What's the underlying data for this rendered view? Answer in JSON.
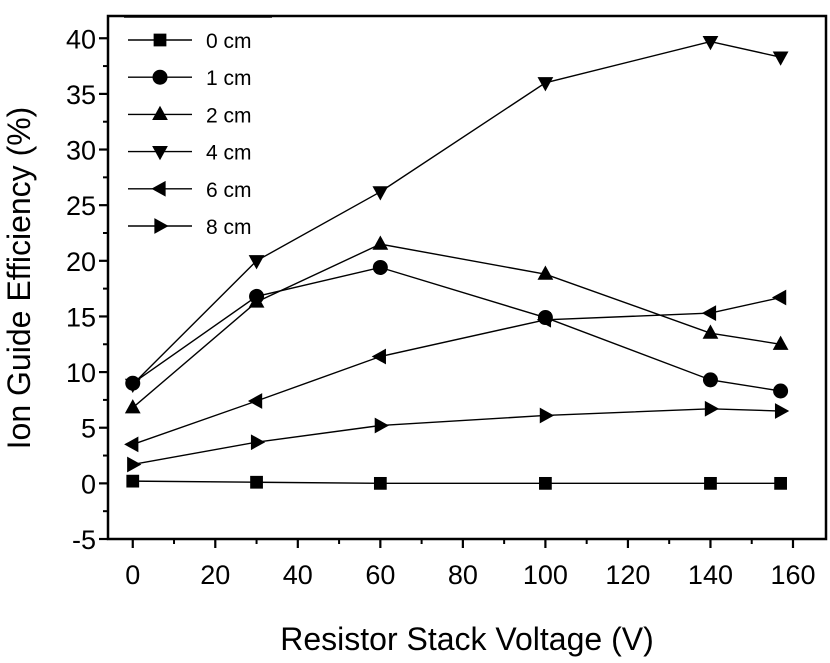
{
  "chart_data": {
    "type": "line",
    "title": "",
    "xlabel": "Resistor Stack Voltage (V)",
    "ylabel": "Ion Guide Efficiency (%)",
    "xlim": [
      -6,
      168
    ],
    "ylim": [
      -5,
      42
    ],
    "xticks": [
      0,
      20,
      40,
      60,
      80,
      100,
      120,
      140,
      160
    ],
    "yticks": [
      -5,
      0,
      5,
      10,
      15,
      20,
      25,
      30,
      35,
      40
    ],
    "legend_position": "top-left",
    "x": [
      0,
      30,
      60,
      100,
      140,
      157
    ],
    "series": [
      {
        "name": "0 cm",
        "marker": "square",
        "values": [
          0.2,
          0.1,
          0.0,
          0.0,
          0.0,
          0.0
        ]
      },
      {
        "name": "1 cm",
        "marker": "circle",
        "values": [
          9.0,
          16.8,
          19.4,
          14.9,
          9.3,
          8.3
        ]
      },
      {
        "name": "2 cm",
        "marker": "triangle-up",
        "values": [
          6.8,
          16.3,
          21.5,
          18.8,
          13.5,
          12.5
        ]
      },
      {
        "name": "4 cm",
        "marker": "triangle-down",
        "values": [
          8.9,
          20.0,
          26.2,
          36.0,
          39.7,
          38.3
        ]
      },
      {
        "name": "6 cm",
        "marker": "triangle-left",
        "values": [
          3.5,
          7.4,
          11.4,
          14.7,
          15.3,
          16.7
        ]
      },
      {
        "name": "8 cm",
        "marker": "triangle-right",
        "values": [
          1.7,
          3.7,
          5.2,
          6.1,
          6.7,
          6.5
        ]
      }
    ]
  }
}
